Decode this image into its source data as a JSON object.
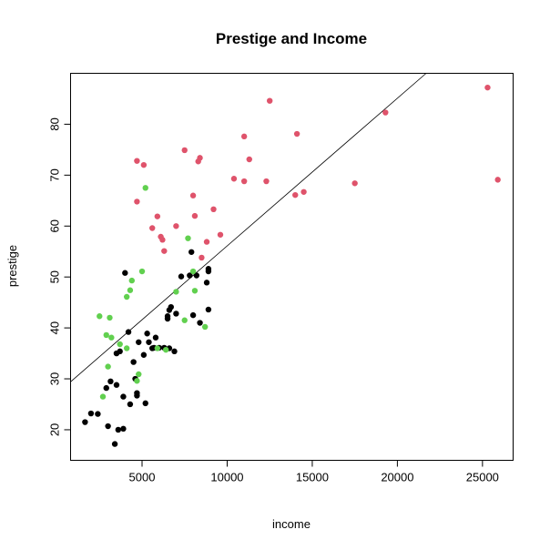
{
  "chart_data": {
    "type": "scatter",
    "title": "Prestige and Income",
    "xlabel": "income",
    "ylabel": "prestige",
    "xlim": [
      800,
      26800
    ],
    "ylim": [
      14,
      90
    ],
    "xticks": [
      5000,
      10000,
      15000,
      20000,
      25000
    ],
    "yticks": [
      20,
      30,
      40,
      50,
      60,
      70,
      80
    ],
    "grid": false,
    "legend": "none",
    "regression_line": {
      "intercept": 27.1,
      "slope": 0.0029
    },
    "series": [
      {
        "color": "#000000",
        "points": [
          [
            1650,
            21.5
          ],
          [
            2000,
            23.2
          ],
          [
            2400,
            23.1
          ],
          [
            2900,
            28.2
          ],
          [
            3000,
            20.7
          ],
          [
            3150,
            29.5
          ],
          [
            3400,
            17.2
          ],
          [
            3500,
            28.8
          ],
          [
            3500,
            35.0
          ],
          [
            3600,
            20.0
          ],
          [
            3700,
            35.4
          ],
          [
            3900,
            20.2
          ],
          [
            3900,
            26.5
          ],
          [
            4000,
            50.8
          ],
          [
            4200,
            39.2
          ],
          [
            4300,
            25.0
          ],
          [
            4500,
            33.3
          ],
          [
            4600,
            30.0
          ],
          [
            4700,
            26.7
          ],
          [
            4700,
            27.2
          ],
          [
            4800,
            37.2
          ],
          [
            5100,
            34.7
          ],
          [
            5200,
            25.2
          ],
          [
            5300,
            38.9
          ],
          [
            5400,
            37.2
          ],
          [
            5600,
            36.0
          ],
          [
            5700,
            36.1
          ],
          [
            5800,
            38.1
          ],
          [
            6000,
            36.1
          ],
          [
            6300,
            36.1
          ],
          [
            6500,
            42.3
          ],
          [
            6500,
            41.8
          ],
          [
            6600,
            43.5
          ],
          [
            6600,
            36.0
          ],
          [
            6700,
            44.1
          ],
          [
            6900,
            35.4
          ],
          [
            7000,
            42.8
          ],
          [
            7300,
            50.1
          ],
          [
            7800,
            50.3
          ],
          [
            7900,
            54.9
          ],
          [
            8000,
            42.5
          ],
          [
            8200,
            50.3
          ],
          [
            8400,
            41.0
          ],
          [
            8800,
            48.9
          ],
          [
            8900,
            43.6
          ],
          [
            8900,
            51.1
          ],
          [
            8900,
            51.6
          ]
        ]
      },
      {
        "color": "#61d04f",
        "points": [
          [
            2500,
            42.3
          ],
          [
            2700,
            26.5
          ],
          [
            2900,
            38.6
          ],
          [
            3000,
            32.4
          ],
          [
            3100,
            42.0
          ],
          [
            3200,
            38.1
          ],
          [
            3700,
            36.8
          ],
          [
            4100,
            36.0
          ],
          [
            4100,
            46.1
          ],
          [
            4300,
            47.4
          ],
          [
            4400,
            49.3
          ],
          [
            4700,
            29.6
          ],
          [
            4800,
            30.9
          ],
          [
            5000,
            51.1
          ],
          [
            5200,
            67.5
          ],
          [
            5900,
            36.0
          ],
          [
            6400,
            35.7
          ],
          [
            7000,
            47.1
          ],
          [
            7500,
            41.5
          ],
          [
            7700,
            57.6
          ],
          [
            8000,
            51.1
          ],
          [
            8100,
            47.3
          ],
          [
            8700,
            40.2
          ]
        ]
      },
      {
        "color": "#df536b",
        "points": [
          [
            4700,
            72.8
          ],
          [
            4700,
            64.8
          ],
          [
            5100,
            72.0
          ],
          [
            5600,
            59.6
          ],
          [
            5900,
            61.9
          ],
          [
            6100,
            57.9
          ],
          [
            6200,
            57.3
          ],
          [
            6300,
            55.1
          ],
          [
            7000,
            60.0
          ],
          [
            7500,
            74.9
          ],
          [
            8000,
            66.0
          ],
          [
            8100,
            62.0
          ],
          [
            8300,
            72.7
          ],
          [
            8400,
            73.4
          ],
          [
            8500,
            53.8
          ],
          [
            8800,
            56.9
          ],
          [
            9200,
            63.3
          ],
          [
            9600,
            58.3
          ],
          [
            10400,
            69.3
          ],
          [
            11000,
            77.6
          ],
          [
            11000,
            68.8
          ],
          [
            11300,
            73.1
          ],
          [
            12300,
            68.8
          ],
          [
            12500,
            84.6
          ],
          [
            14000,
            66.1
          ],
          [
            14100,
            78.1
          ],
          [
            14500,
            66.7
          ],
          [
            17500,
            68.4
          ],
          [
            19300,
            82.3
          ],
          [
            25300,
            87.2
          ],
          [
            25900,
            69.1
          ]
        ]
      }
    ]
  }
}
